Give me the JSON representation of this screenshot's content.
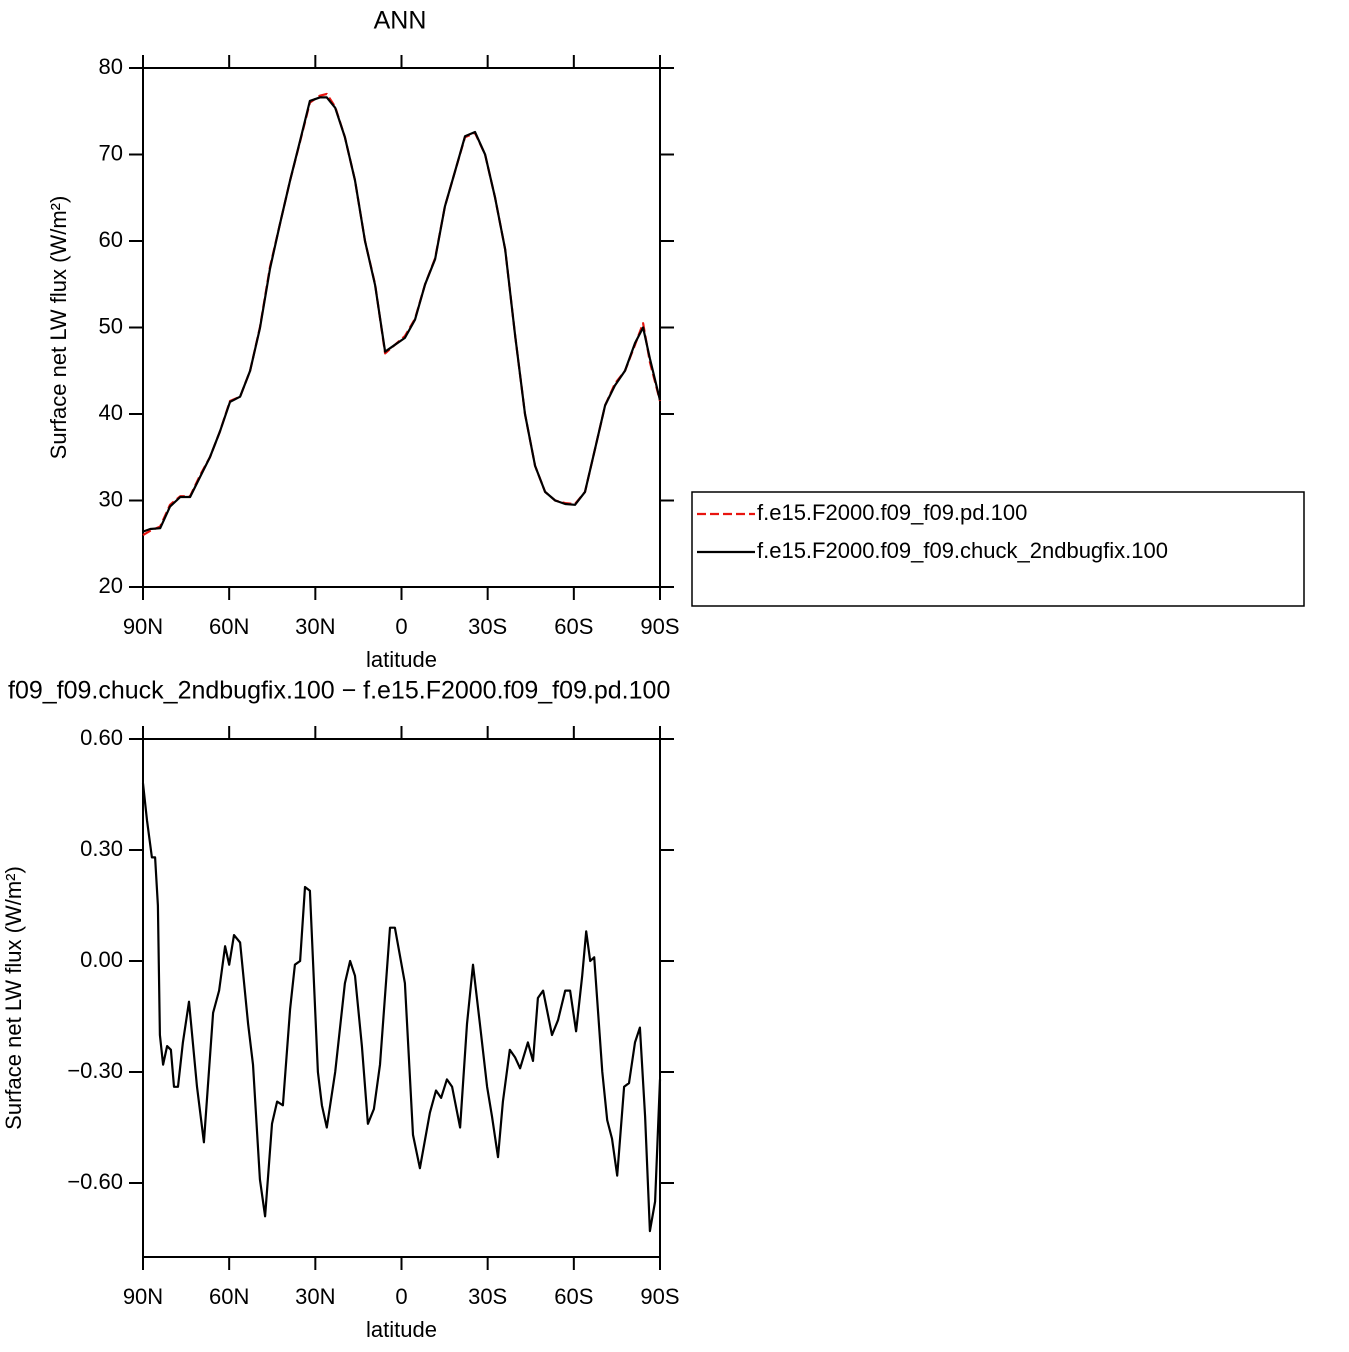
{
  "chart_data": [
    {
      "type": "line",
      "title": "ANN",
      "xlabel": "latitude",
      "ylabel": "Surface net LW flux (W/m²)",
      "xlim": [
        90,
        -90
      ],
      "ylim": [
        20,
        80
      ],
      "xticks": [
        {
          "value": 90,
          "label": "90N"
        },
        {
          "value": 60,
          "label": "60N"
        },
        {
          "value": 30,
          "label": "30N"
        },
        0,
        {
          "value": -30,
          "label": "30S"
        },
        {
          "value": -60,
          "label": "60S"
        },
        {
          "value": -90,
          "label": "90S"
        }
      ],
      "yticks": [
        20,
        30,
        40,
        50,
        60,
        70,
        80
      ],
      "legend": "right",
      "x": [
        90,
        87.5,
        84,
        80.6,
        77,
        73.6,
        70,
        66.7,
        63.2,
        59.7,
        56.2,
        52.7,
        49.3,
        45.8,
        42.3,
        38.8,
        35.3,
        31.9,
        28.4,
        26,
        23.1,
        19.7,
        16.2,
        12.7,
        9.2,
        5.7,
        2.3,
        -1.2,
        -4.7,
        -8.2,
        -11.7,
        -15.1,
        -18.6,
        -22.1,
        -25.6,
        -29.1,
        -32.6,
        -36.1,
        -39.6,
        -43,
        -46.5,
        -50,
        -53.5,
        -57,
        -60.4,
        -63.9,
        -67.4,
        -70.9,
        -74.3,
        -77.8,
        -81.3,
        -84.1,
        -86.5,
        -90
      ],
      "series": [
        {
          "name": "f.e15.F2000.f09_f09.pd.100",
          "color": "#e8140f",
          "dash": "dashed",
          "values": [
            26,
            26.5,
            27,
            29.5,
            30.5,
            30.5,
            33,
            35,
            38,
            41.5,
            42,
            45,
            50,
            57,
            62,
            67,
            71.5,
            76,
            76.8,
            77,
            75.5,
            72,
            67,
            60,
            55,
            47,
            48,
            49,
            51,
            55,
            58,
            64,
            68,
            72,
            72.5,
            70,
            65,
            59,
            49,
            40,
            34,
            31,
            30,
            29.7,
            29.6,
            31,
            36,
            41,
            43.5,
            45,
            48,
            50.5,
            46,
            41.5
          ]
        },
        {
          "name": "f.e15.F2000.f09_f09.chuck_2ndbugfix.100",
          "color": "#000000",
          "dash": "solid",
          "values": [
            26.4,
            26.7,
            26.8,
            29.3,
            30.4,
            30.4,
            32.8,
            35,
            38,
            41.4,
            42,
            45,
            49.9,
            56.8,
            62,
            67,
            71.6,
            76.2,
            76.6,
            76.6,
            75.4,
            72,
            67,
            60,
            54.9,
            47.2,
            48,
            48.8,
            50.9,
            55,
            57.9,
            64,
            68,
            72.1,
            72.6,
            70,
            65,
            59,
            49,
            40,
            34,
            31,
            30,
            29.6,
            29.5,
            31,
            36,
            41,
            43.3,
            45,
            48.2,
            50,
            46.4,
            41.6
          ]
        }
      ]
    },
    {
      "type": "line",
      "title": "f09_f09.chuck_2ndbugfix.100 − f.e15.F2000.f09_f09.pd.100",
      "xlabel": "latitude",
      "ylabel": "Surface net LW flux (W/m²)",
      "xlim": [
        90,
        -90
      ],
      "ylim": [
        -0.8,
        0.6
      ],
      "xticks": [
        {
          "value": 90,
          "label": "90N"
        },
        {
          "value": 60,
          "label": "60N"
        },
        {
          "value": 30,
          "label": "30N"
        },
        0,
        {
          "value": -30,
          "label": "30S"
        },
        {
          "value": -60,
          "label": "60S"
        },
        {
          "value": -90,
          "label": "90S"
        }
      ],
      "yticks": [
        {
          "value": 0.6,
          "label": "0.60"
        },
        {
          "value": 0.3,
          "label": "0.30"
        },
        {
          "value": 0,
          "label": "0.00"
        },
        {
          "value": -0.3,
          "label": "−0.30"
        },
        {
          "value": -0.6,
          "label": "−0.60"
        }
      ],
      "x": [
        90,
        88.6,
        86.9,
        85.8,
        84.8,
        84.1,
        83,
        81.6,
        80.3,
        79.2,
        77.8,
        76.1,
        74,
        71.2,
        68.8,
        65.6,
        63.5,
        61.4,
        60,
        58.3,
        56.2,
        53.4,
        51.7,
        49.3,
        47.5,
        45.1,
        43.3,
        41.3,
        38.8,
        37.1,
        35.3,
        33.6,
        31.9,
        29.1,
        27.7,
        26,
        23.1,
        19.7,
        17.9,
        16.2,
        13.8,
        11.7,
        9.6,
        7.5,
        4,
        2.3,
        -1.2,
        -4,
        -6.4,
        -9.9,
        -12,
        -13.8,
        -15.8,
        -17.6,
        -20.4,
        -22.8,
        -24.9,
        -27.3,
        -29.8,
        -31.5,
        -33.6,
        -35.3,
        -37.7,
        -39.5,
        -41.3,
        -44,
        -45.8,
        -47.5,
        -49.3,
        -52.4,
        -54.5,
        -57,
        -58.7,
        -60.8,
        -62.9,
        -64.3,
        -65.7,
        -67.1,
        -69.9,
        -71.6,
        -73.3,
        -75.1,
        -77.5,
        -79.2,
        -81.3,
        -83,
        -84.8,
        -86.5,
        -88.3,
        -90
      ],
      "series": [
        {
          "color": "#000000",
          "dash": "solid",
          "values": [
            0.48,
            0.38,
            0.28,
            0.28,
            0.15,
            -0.2,
            -0.28,
            -0.23,
            -0.24,
            -0.34,
            -0.34,
            -0.22,
            -0.11,
            -0.34,
            -0.49,
            -0.14,
            -0.08,
            0.04,
            -0.01,
            0.07,
            0.05,
            -0.17,
            -0.28,
            -0.59,
            -0.69,
            -0.44,
            -0.38,
            -0.39,
            -0.13,
            -0.01,
            0.0,
            0.2,
            0.19,
            -0.3,
            -0.39,
            -0.45,
            -0.3,
            -0.06,
            0.0,
            -0.04,
            -0.23,
            -0.44,
            -0.4,
            -0.28,
            0.09,
            0.09,
            -0.06,
            -0.47,
            -0.56,
            -0.41,
            -0.35,
            -0.37,
            -0.32,
            -0.34,
            -0.45,
            -0.17,
            -0.01,
            -0.17,
            -0.34,
            -0.42,
            -0.53,
            -0.38,
            -0.24,
            -0.26,
            -0.29,
            -0.22,
            -0.27,
            -0.1,
            -0.08,
            -0.2,
            -0.16,
            -0.08,
            -0.08,
            -0.19,
            -0.04,
            0.08,
            0.0,
            0.01,
            -0.3,
            -0.43,
            -0.48,
            -0.58,
            -0.34,
            -0.33,
            -0.22,
            -0.18,
            -0.42,
            -0.73,
            -0.65,
            -0.32
          ]
        }
      ]
    }
  ]
}
